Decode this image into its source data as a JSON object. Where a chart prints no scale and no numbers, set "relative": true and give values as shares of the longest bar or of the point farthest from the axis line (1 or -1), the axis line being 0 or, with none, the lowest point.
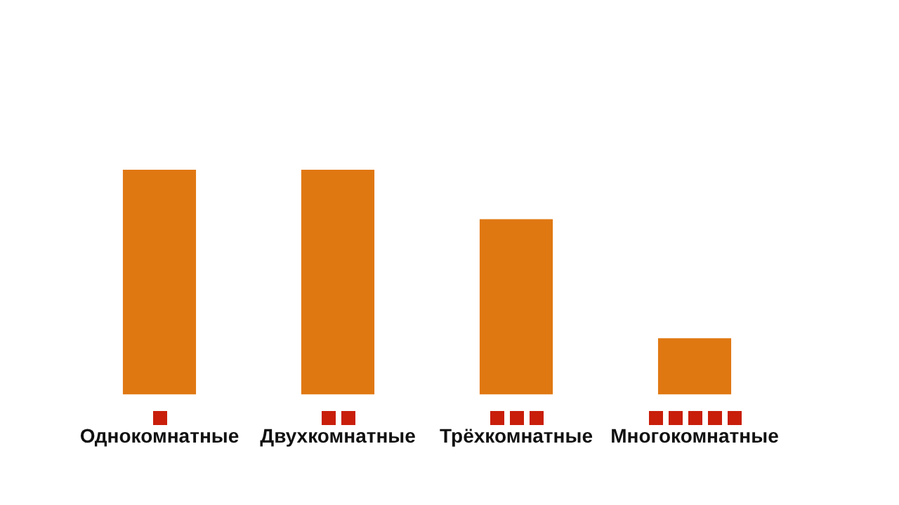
{
  "chart_data": {
    "type": "bar",
    "categories": [
      "Однокомнатные",
      "Двухкомнатные",
      "Трёхкомнатные",
      "Многокомнатные"
    ],
    "values": [
      1,
      1,
      0.78,
      0.25
    ],
    "color": "#e07812",
    "relative": true,
    "grid": false,
    "legend": false
  }
}
